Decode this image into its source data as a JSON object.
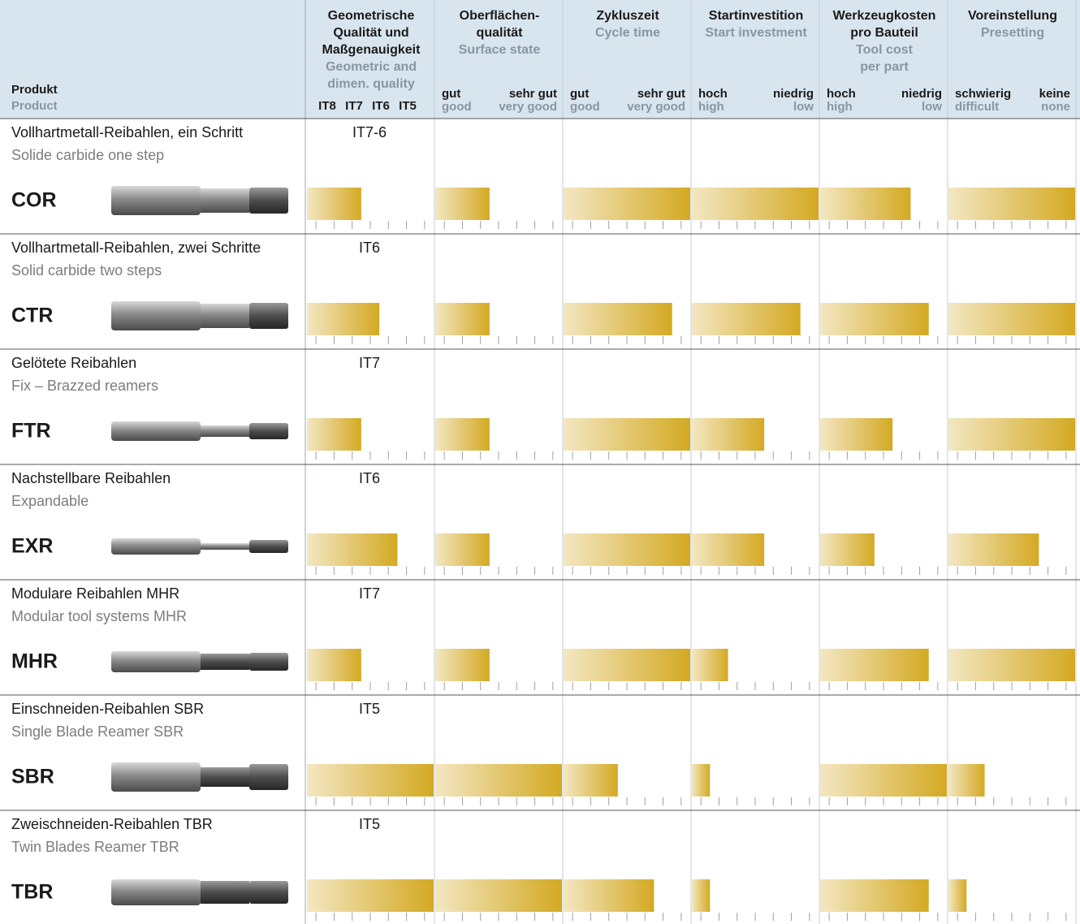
{
  "header": {
    "product": {
      "de": "Produkt",
      "en": "Product"
    },
    "columns": [
      {
        "de": [
          "Geometrische",
          "Qualität und",
          "Maßgenauigkeit"
        ],
        "en": [
          "Geometric and",
          "dimen. quality"
        ],
        "scale": [
          "IT8",
          "IT7",
          "IT6",
          "IT5"
        ]
      },
      {
        "de": [
          "Oberflächen-",
          "qualität"
        ],
        "en": [
          "Surface state"
        ],
        "left": {
          "de": "gut",
          "en": "good"
        },
        "right": {
          "de": "sehr gut",
          "en": "very good"
        }
      },
      {
        "de": [
          "Zykluszeit"
        ],
        "en": [
          "Cycle time"
        ],
        "left": {
          "de": "gut",
          "en": "good"
        },
        "right": {
          "de": "sehr gut",
          "en": "very good"
        }
      },
      {
        "de": [
          "Startinvestition"
        ],
        "en": [
          "Start investment"
        ],
        "left": {
          "de": "hoch",
          "en": "high"
        },
        "right": {
          "de": "niedrig",
          "en": "low"
        }
      },
      {
        "de": [
          "Werkzeugkosten",
          "pro Bauteil"
        ],
        "en": [
          "Tool cost",
          "per part"
        ],
        "left": {
          "de": "hoch",
          "en": "high"
        },
        "right": {
          "de": "niedrig",
          "en": "low"
        }
      },
      {
        "de": [
          "Voreinstellung"
        ],
        "en": [
          "Presetting"
        ],
        "left": {
          "de": "schwierig",
          "en": "difficult"
        },
        "right": {
          "de": "keine",
          "en": "none"
        }
      }
    ]
  },
  "scale": {
    "max": 7,
    "ticks": [
      0.5,
      1.5,
      2.5,
      3.5,
      4.5,
      5.5,
      6.5
    ]
  },
  "rows": [
    {
      "de": "Vollhartmetall-Reibahlen, ein Schritt",
      "en": "Solide carbide one step",
      "code": "COR",
      "quality": "IT7-6",
      "ratings": [
        3,
        3,
        7,
        7,
        5,
        7
      ]
    },
    {
      "de": "Vollhartmetall-Reibahlen, zwei Schritte",
      "en": "Solid carbide two steps",
      "code": "CTR",
      "quality": "IT6",
      "ratings": [
        4,
        3,
        6,
        6,
        6,
        7
      ]
    },
    {
      "de": "Gelötete Reibahlen",
      "en": "Fix – Brazzed reamers",
      "code": "FTR",
      "quality": "IT7",
      "ratings": [
        3,
        3,
        7,
        4,
        4,
        7
      ]
    },
    {
      "de": "Nachstellbare Reibahlen",
      "en": "Expandable",
      "code": "EXR",
      "quality": "IT6",
      "ratings": [
        5,
        3,
        7,
        4,
        3,
        5
      ]
    },
    {
      "de": "Modulare Reibahlen MHR",
      "en": "Modular tool systems MHR",
      "code": "MHR",
      "quality": "IT7",
      "ratings": [
        3,
        3,
        7,
        2,
        6,
        7
      ]
    },
    {
      "de": "Einschneiden-Reibahlen SBR",
      "en": "Single Blade Reamer SBR",
      "code": "SBR",
      "quality": "IT5",
      "ratings": [
        7,
        7,
        3,
        1,
        7,
        2
      ]
    },
    {
      "de": "Zweischneiden-Reibahlen TBR",
      "en": "Twin Blades Reamer TBR",
      "code": "TBR",
      "quality": "IT5",
      "ratings": [
        7,
        7,
        5,
        1,
        6,
        1
      ]
    }
  ]
}
